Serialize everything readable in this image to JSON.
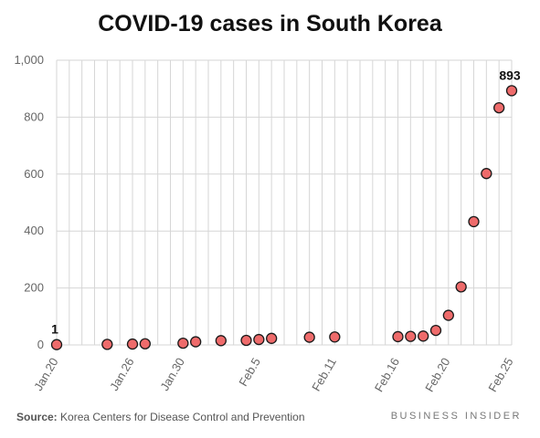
{
  "chart_data": {
    "type": "scatter",
    "title": "COVID-19 cases in South Korea",
    "xlabel": "",
    "ylabel": "",
    "ylim": [
      0,
      1000
    ],
    "yticks": [
      0,
      200,
      400,
      600,
      800,
      1000
    ],
    "ytick_labels": [
      "0",
      "200",
      "400",
      "600",
      "800",
      "1,000"
    ],
    "xticks": [
      {
        "day": "2020-01-20",
        "label": "Jan.20"
      },
      {
        "day": "2020-01-26",
        "label": "Jan.26"
      },
      {
        "day": "2020-01-30",
        "label": "Jan.30"
      },
      {
        "day": "2020-02-05",
        "label": "Feb.5"
      },
      {
        "day": "2020-02-11",
        "label": "Feb.11"
      },
      {
        "day": "2020-02-16",
        "label": "Feb.16"
      },
      {
        "day": "2020-02-20",
        "label": "Feb.20"
      },
      {
        "day": "2020-02-25",
        "label": "Feb.25"
      }
    ],
    "grid": true,
    "points": [
      {
        "day": "2020-01-20",
        "value": 1
      },
      {
        "day": "2020-01-24",
        "value": 2
      },
      {
        "day": "2020-01-26",
        "value": 3
      },
      {
        "day": "2020-01-27",
        "value": 4
      },
      {
        "day": "2020-01-30",
        "value": 6
      },
      {
        "day": "2020-01-31",
        "value": 11
      },
      {
        "day": "2020-02-02",
        "value": 15
      },
      {
        "day": "2020-02-04",
        "value": 16
      },
      {
        "day": "2020-02-05",
        "value": 19
      },
      {
        "day": "2020-02-06",
        "value": 23
      },
      {
        "day": "2020-02-09",
        "value": 27
      },
      {
        "day": "2020-02-11",
        "value": 28
      },
      {
        "day": "2020-02-16",
        "value": 29
      },
      {
        "day": "2020-02-17",
        "value": 30
      },
      {
        "day": "2020-02-18",
        "value": 31
      },
      {
        "day": "2020-02-19",
        "value": 51
      },
      {
        "day": "2020-02-20",
        "value": 104
      },
      {
        "day": "2020-02-21",
        "value": 204
      },
      {
        "day": "2020-02-22",
        "value": 433
      },
      {
        "day": "2020-02-23",
        "value": 602
      },
      {
        "day": "2020-02-24",
        "value": 833
      },
      {
        "day": "2020-02-25",
        "value": 893
      }
    ],
    "annotations": [
      {
        "day": "2020-01-20",
        "text": "1"
      },
      {
        "day": "2020-02-25",
        "text": "893"
      }
    ]
  },
  "colors": {
    "marker_fill": "#ee6b6b",
    "marker_stroke": "#1a1a1a",
    "grid": "#d6d6d6",
    "axis_text": "#666666"
  },
  "footer": {
    "source_label": "Source:",
    "source_text": "Korea Centers for Disease Control and Prevention",
    "brand": "BUSINESS INSIDER"
  }
}
